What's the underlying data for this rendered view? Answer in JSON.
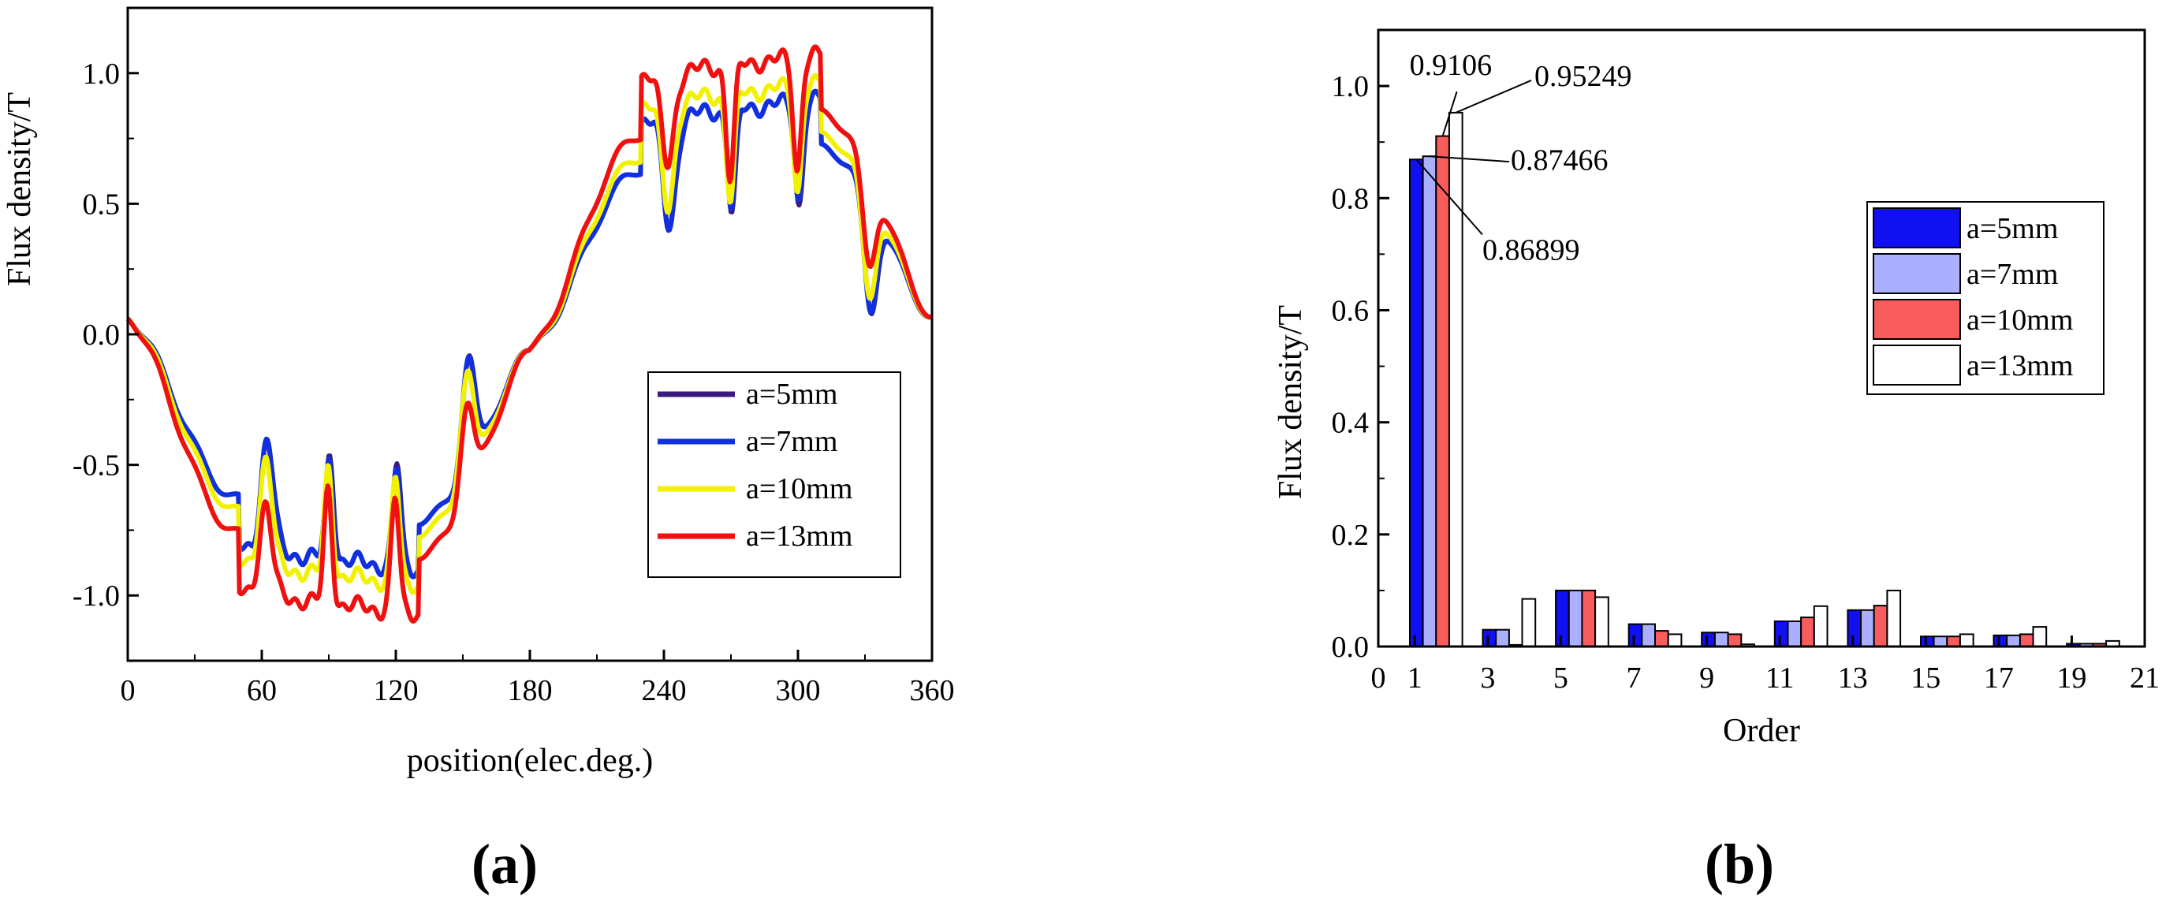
{
  "chart_data": [
    {
      "panel": "(a)",
      "type": "line",
      "xlabel": "position(elec.deg.)",
      "ylabel": "Flux density/T",
      "xlim": [
        0,
        360
      ],
      "ylim": [
        -1.25,
        1.25
      ],
      "xticks": [
        "0",
        "60",
        "120",
        "180",
        "240",
        "300",
        "360"
      ],
      "yticks": [
        "-1.0",
        "-0.5",
        "0.0",
        "0.5",
        "1.0"
      ],
      "legend_position": "lower-right",
      "series": [
        {
          "name": "a=5mm",
          "color": "#3a1a80",
          "amplitude": 0.86,
          "dip": 0.42,
          "sink": 0.55,
          "skew": 1.5
        },
        {
          "name": "a=7mm",
          "color": "#1030e0",
          "amplitude": 0.86,
          "dip": 0.44,
          "sink": 0.55,
          "skew": 1.0
        },
        {
          "name": "a=10mm",
          "color": "#f2f200",
          "amplitude": 0.92,
          "dip": 0.47,
          "sink": 0.5,
          "skew": -0.5
        },
        {
          "name": "a=13mm",
          "color": "#f01010",
          "amplitude": 1.03,
          "dip": 0.55,
          "sink": 0.38,
          "skew": -1.0
        }
      ]
    },
    {
      "panel": "(b)",
      "type": "bar",
      "xlabel": "Order",
      "ylabel": "Flux density/T",
      "xlim": [
        0,
        21
      ],
      "ylim": [
        0,
        1.1
      ],
      "xticks": [
        "0",
        "1",
        "3",
        "5",
        "7",
        "9",
        "11",
        "13",
        "15",
        "17",
        "19",
        "21"
      ],
      "yticks": [
        "0.0",
        "0.2",
        "0.4",
        "0.6",
        "0.8",
        "1.0"
      ],
      "categories": [
        1,
        3,
        5,
        7,
        9,
        11,
        13,
        15,
        17,
        19
      ],
      "legend_position": "upper-right",
      "series": [
        {
          "name": "a=5mm",
          "color": "#1010f0",
          "values": [
            0.86899,
            0.03,
            0.1,
            0.04,
            0.025,
            0.045,
            0.065,
            0.018,
            0.02,
            0.005
          ]
        },
        {
          "name": "a=7mm",
          "color": "#aab0ff",
          "values": [
            0.87466,
            0.03,
            0.1,
            0.04,
            0.025,
            0.045,
            0.065,
            0.018,
            0.02,
            0.005
          ]
        },
        {
          "name": "a=10mm",
          "color": "#f85c5c",
          "values": [
            0.9106,
            0.003,
            0.1,
            0.028,
            0.022,
            0.052,
            0.073,
            0.018,
            0.022,
            0.005
          ]
        },
        {
          "name": "a=13mm",
          "color": "#ffffff",
          "values": [
            0.95249,
            0.085,
            0.088,
            0.022,
            0.004,
            0.072,
            0.1,
            0.022,
            0.035,
            0.01
          ]
        }
      ],
      "annotations": [
        "0.9106",
        "0.95249",
        "0.87466",
        "0.86899"
      ]
    }
  ]
}
